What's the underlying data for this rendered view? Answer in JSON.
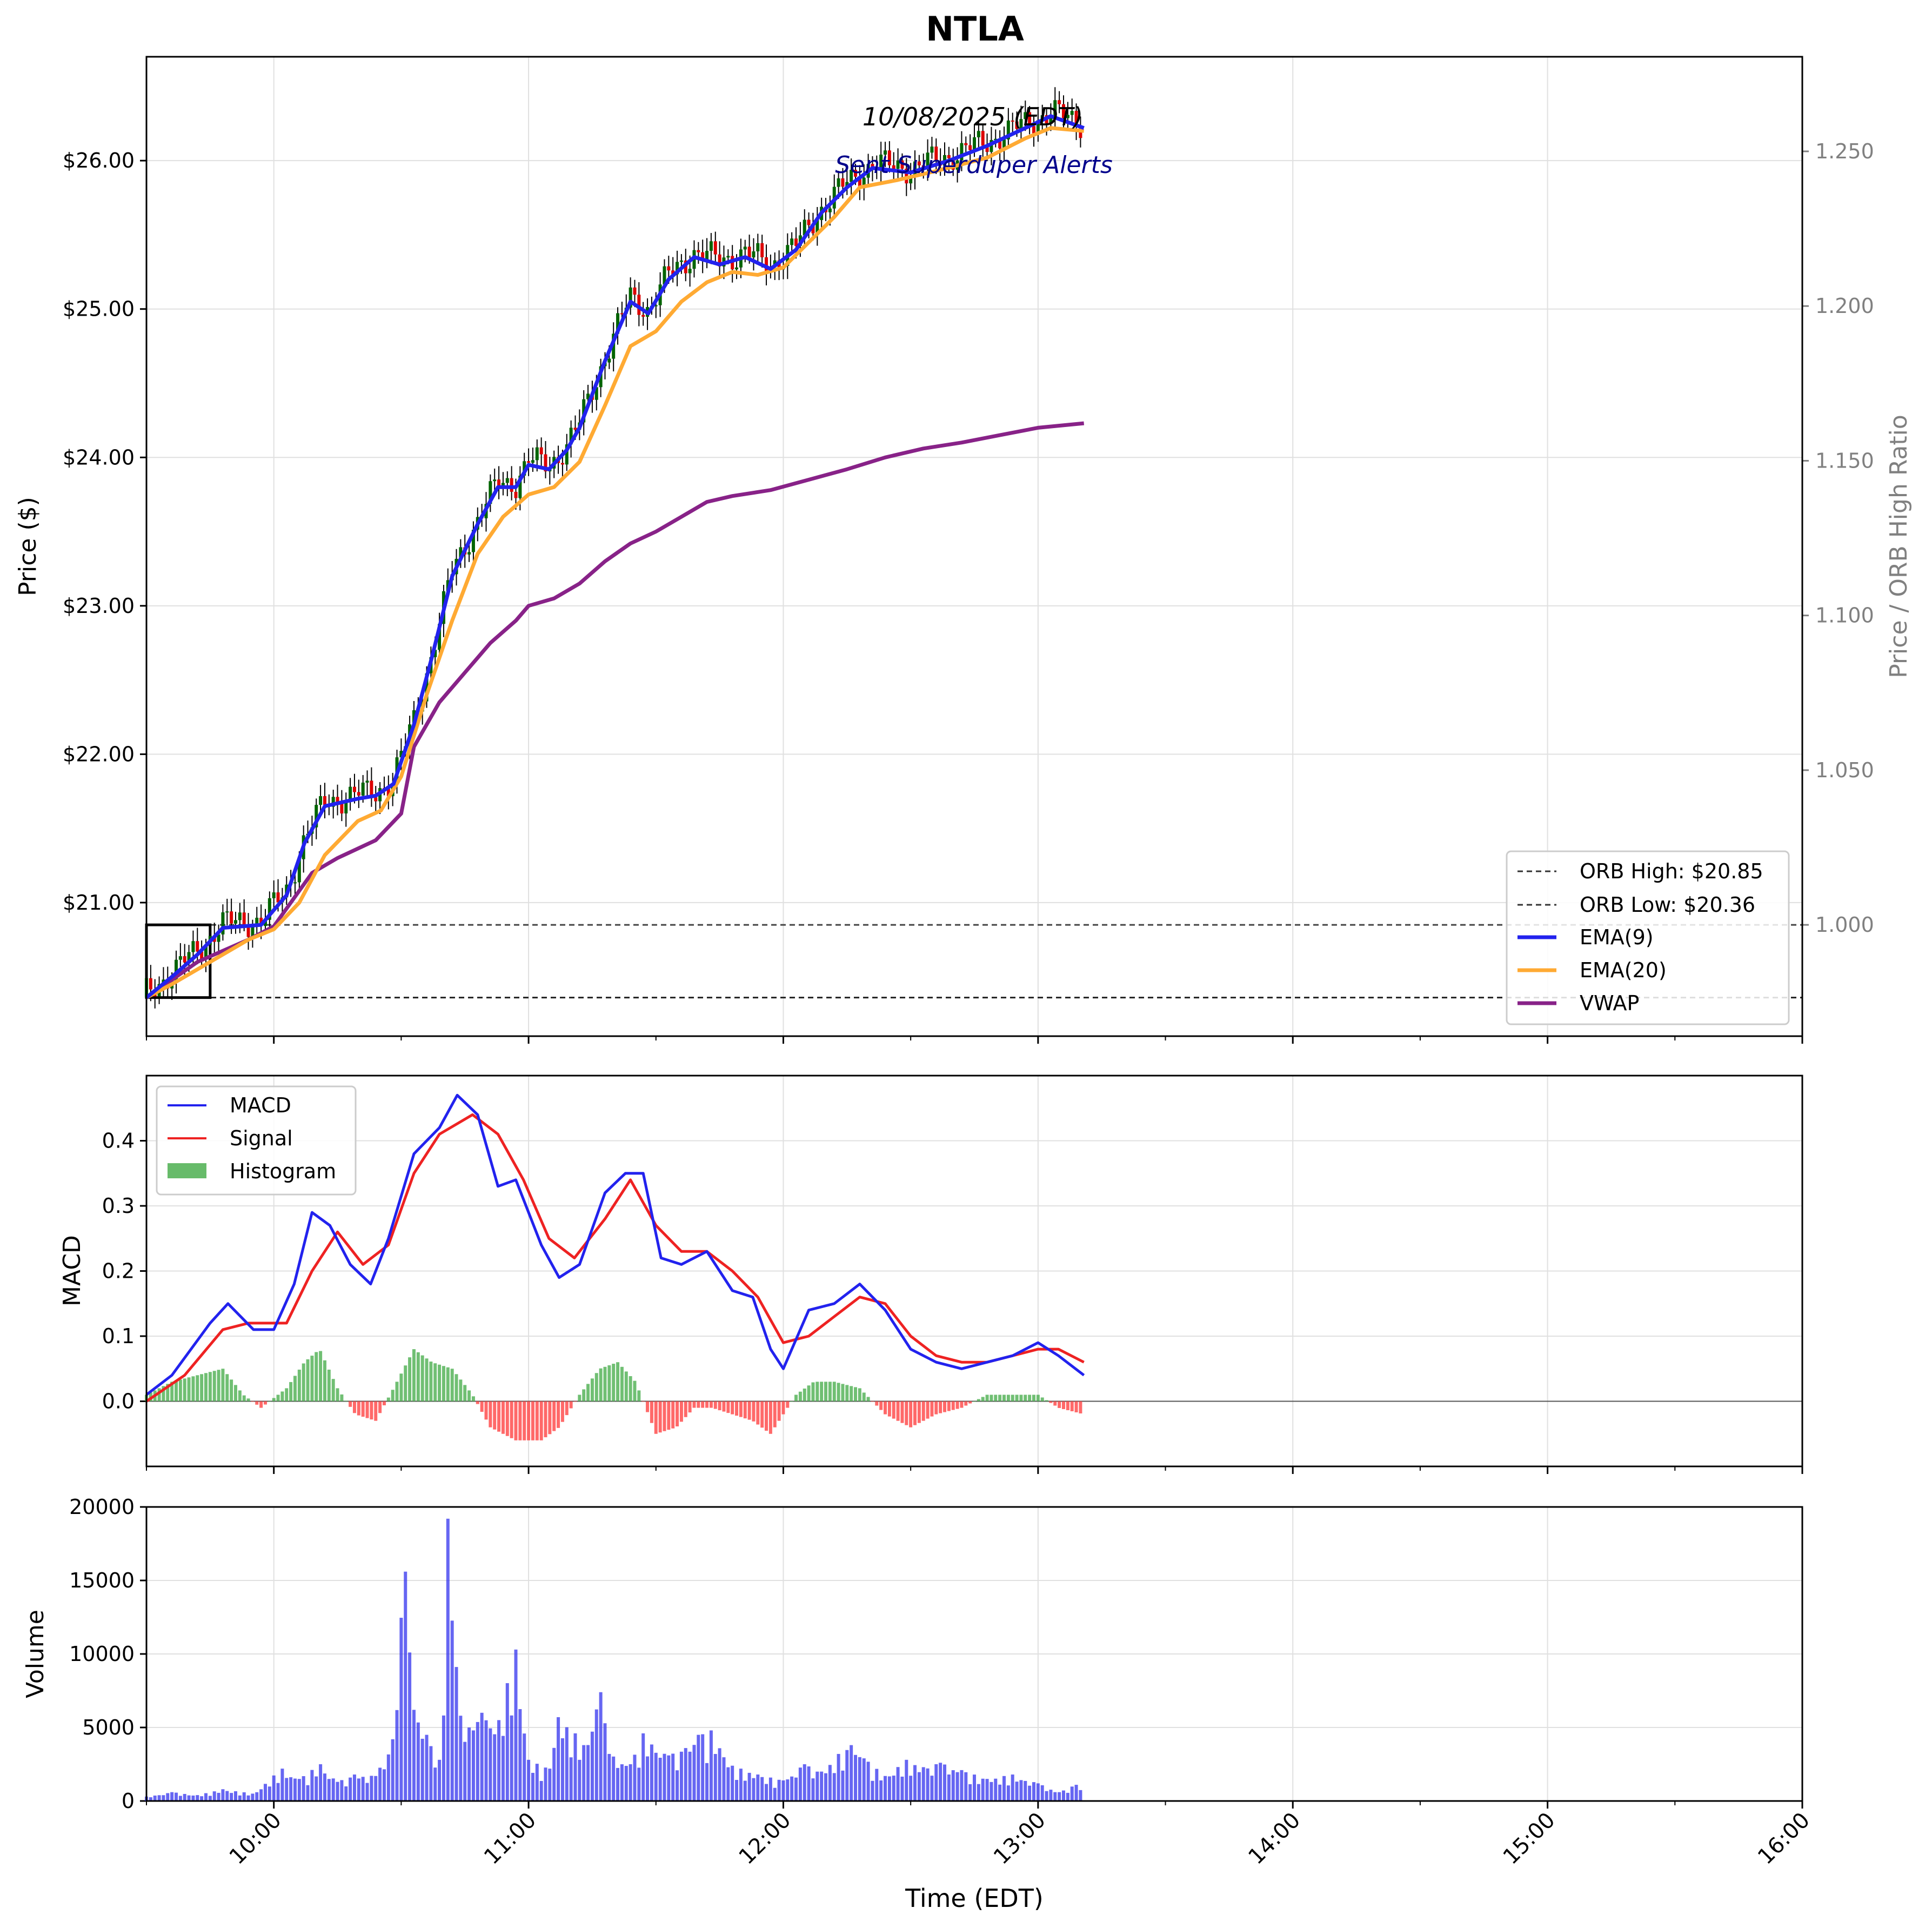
{
  "chart_data": {
    "title": "NTLA",
    "date_label": "10/08/2025 (EDT)",
    "sent_label": "Sent Superduper Alerts",
    "xlabel": "Time (EDT)",
    "x_ticks": [
      "10:00",
      "11:00",
      "12:00",
      "13:00",
      "14:00",
      "15:00",
      "16:00"
    ],
    "x_range": [
      "09:30",
      "16:00"
    ],
    "price": {
      "type": "candlestick",
      "ylabel": "Price ($)",
      "right_ylabel": "Price / ORB High Ratio",
      "ylim": [
        20.1,
        26.7
      ],
      "y_ticks": [
        "$21.00",
        "$22.00",
        "$23.00",
        "$24.00",
        "$25.00",
        "$26.00"
      ],
      "right_ticks": [
        "1.000",
        "1.050",
        "1.100",
        "1.150",
        "1.200",
        "1.250"
      ],
      "orb_high": 20.85,
      "orb_low": 20.36,
      "legend": [
        "ORB High: $20.85",
        "ORB Low: $20.36",
        "EMA(9)",
        "EMA(20)",
        "VWAP"
      ],
      "legend_position": "lower-right",
      "colors": {
        "ema9": "#2222ee",
        "ema20": "#ffaa33",
        "vwap": "#882288",
        "up": "#006400",
        "down": "#dd0000"
      },
      "ema9": [
        [
          9.5,
          20.36
        ],
        [
          9.6,
          20.5
        ],
        [
          9.7,
          20.65
        ],
        [
          9.8,
          20.83
        ],
        [
          9.95,
          20.85
        ],
        [
          10.05,
          21.05
        ],
        [
          10.12,
          21.4
        ],
        [
          10.2,
          21.65
        ],
        [
          10.33,
          21.7
        ],
        [
          10.4,
          21.72
        ],
        [
          10.47,
          21.8
        ],
        [
          10.55,
          22.2
        ],
        [
          10.62,
          22.65
        ],
        [
          10.7,
          23.2
        ],
        [
          10.8,
          23.55
        ],
        [
          10.88,
          23.8
        ],
        [
          10.95,
          23.8
        ],
        [
          11.0,
          23.95
        ],
        [
          11.08,
          23.92
        ],
        [
          11.15,
          24.05
        ],
        [
          11.2,
          24.2
        ],
        [
          11.3,
          24.65
        ],
        [
          11.4,
          25.05
        ],
        [
          11.47,
          24.97
        ],
        [
          11.55,
          25.2
        ],
        [
          11.65,
          25.35
        ],
        [
          11.75,
          25.3
        ],
        [
          11.85,
          25.35
        ],
        [
          11.95,
          25.27
        ],
        [
          12.05,
          25.4
        ],
        [
          12.15,
          25.65
        ],
        [
          12.25,
          25.82
        ],
        [
          12.35,
          25.95
        ],
        [
          12.5,
          25.92
        ],
        [
          12.65,
          26.0
        ],
        [
          12.8,
          26.1
        ],
        [
          12.95,
          26.22
        ],
        [
          13.05,
          26.3
        ],
        [
          13.18,
          26.22
        ]
      ],
      "ema20": [
        [
          9.5,
          20.36
        ],
        [
          9.6,
          20.45
        ],
        [
          9.75,
          20.6
        ],
        [
          9.9,
          20.75
        ],
        [
          10.0,
          20.82
        ],
        [
          10.1,
          21.0
        ],
        [
          10.2,
          21.32
        ],
        [
          10.33,
          21.55
        ],
        [
          10.42,
          21.62
        ],
        [
          10.5,
          21.85
        ],
        [
          10.6,
          22.4
        ],
        [
          10.7,
          22.9
        ],
        [
          10.8,
          23.35
        ],
        [
          10.9,
          23.6
        ],
        [
          11.0,
          23.75
        ],
        [
          11.1,
          23.8
        ],
        [
          11.2,
          23.97
        ],
        [
          11.3,
          24.35
        ],
        [
          11.4,
          24.75
        ],
        [
          11.5,
          24.85
        ],
        [
          11.6,
          25.05
        ],
        [
          11.7,
          25.18
        ],
        [
          11.8,
          25.25
        ],
        [
          11.9,
          25.23
        ],
        [
          12.0,
          25.28
        ],
        [
          12.1,
          25.45
        ],
        [
          12.2,
          25.62
        ],
        [
          12.3,
          25.82
        ],
        [
          12.45,
          25.87
        ],
        [
          12.6,
          25.93
        ],
        [
          12.8,
          26.02
        ],
        [
          12.95,
          26.15
        ],
        [
          13.05,
          26.22
        ],
        [
          13.18,
          26.2
        ]
      ],
      "vwap": [
        [
          9.5,
          20.36
        ],
        [
          9.7,
          20.6
        ],
        [
          9.9,
          20.75
        ],
        [
          10.0,
          20.84
        ],
        [
          10.15,
          21.2
        ],
        [
          10.25,
          21.3
        ],
        [
          10.4,
          21.42
        ],
        [
          10.5,
          21.6
        ],
        [
          10.55,
          22.05
        ],
        [
          10.65,
          22.35
        ],
        [
          10.75,
          22.55
        ],
        [
          10.85,
          22.75
        ],
        [
          10.95,
          22.9
        ],
        [
          11.0,
          23.0
        ],
        [
          11.1,
          23.05
        ],
        [
          11.2,
          23.15
        ],
        [
          11.3,
          23.3
        ],
        [
          11.4,
          23.42
        ],
        [
          11.5,
          23.5
        ],
        [
          11.6,
          23.6
        ],
        [
          11.7,
          23.7
        ],
        [
          11.8,
          23.74
        ],
        [
          11.95,
          23.78
        ],
        [
          12.1,
          23.85
        ],
        [
          12.25,
          23.92
        ],
        [
          12.4,
          24.0
        ],
        [
          12.55,
          24.06
        ],
        [
          12.7,
          24.1
        ],
        [
          12.85,
          24.15
        ],
        [
          13.0,
          24.2
        ],
        [
          13.18,
          24.23
        ]
      ]
    },
    "macd": {
      "ylabel": "MACD",
      "ylim": [
        -0.1,
        0.5
      ],
      "y_ticks": [
        "0.0",
        "0.1",
        "0.2",
        "0.3",
        "0.4"
      ],
      "legend": [
        "MACD",
        "Signal",
        "Histogram"
      ],
      "legend_position": "upper-left",
      "colors": {
        "macd": "#2222ee",
        "signal": "#ee2222",
        "hist_pos": "#4caf50",
        "hist_neg": "#ff4444"
      },
      "macd_line": [
        [
          9.5,
          0.01
        ],
        [
          9.6,
          0.04
        ],
        [
          9.75,
          0.12
        ],
        [
          9.82,
          0.15
        ],
        [
          9.92,
          0.11
        ],
        [
          10.0,
          0.11
        ],
        [
          10.08,
          0.18
        ],
        [
          10.15,
          0.29
        ],
        [
          10.22,
          0.27
        ],
        [
          10.3,
          0.21
        ],
        [
          10.38,
          0.18
        ],
        [
          10.45,
          0.25
        ],
        [
          10.55,
          0.38
        ],
        [
          10.65,
          0.42
        ],
        [
          10.72,
          0.47
        ],
        [
          10.8,
          0.44
        ],
        [
          10.88,
          0.33
        ],
        [
          10.95,
          0.34
        ],
        [
          11.05,
          0.24
        ],
        [
          11.12,
          0.19
        ],
        [
          11.2,
          0.21
        ],
        [
          11.3,
          0.32
        ],
        [
          11.38,
          0.35
        ],
        [
          11.45,
          0.35
        ],
        [
          11.52,
          0.22
        ],
        [
          11.6,
          0.21
        ],
        [
          11.7,
          0.23
        ],
        [
          11.8,
          0.17
        ],
        [
          11.88,
          0.16
        ],
        [
          11.95,
          0.08
        ],
        [
          12.0,
          0.05
        ],
        [
          12.1,
          0.14
        ],
        [
          12.2,
          0.15
        ],
        [
          12.3,
          0.18
        ],
        [
          12.4,
          0.14
        ],
        [
          12.5,
          0.08
        ],
        [
          12.6,
          0.06
        ],
        [
          12.7,
          0.05
        ],
        [
          12.8,
          0.06
        ],
        [
          12.9,
          0.07
        ],
        [
          13.0,
          0.09
        ],
        [
          13.08,
          0.07
        ],
        [
          13.18,
          0.04
        ]
      ],
      "signal_line": [
        [
          9.5,
          0.0
        ],
        [
          9.65,
          0.04
        ],
        [
          9.8,
          0.11
        ],
        [
          9.9,
          0.12
        ],
        [
          10.05,
          0.12
        ],
        [
          10.15,
          0.2
        ],
        [
          10.25,
          0.26
        ],
        [
          10.35,
          0.21
        ],
        [
          10.45,
          0.24
        ],
        [
          10.55,
          0.35
        ],
        [
          10.65,
          0.41
        ],
        [
          10.78,
          0.44
        ],
        [
          10.88,
          0.41
        ],
        [
          10.98,
          0.34
        ],
        [
          11.08,
          0.25
        ],
        [
          11.18,
          0.22
        ],
        [
          11.3,
          0.28
        ],
        [
          11.4,
          0.34
        ],
        [
          11.5,
          0.27
        ],
        [
          11.6,
          0.23
        ],
        [
          11.7,
          0.23
        ],
        [
          11.8,
          0.2
        ],
        [
          11.9,
          0.16
        ],
        [
          12.0,
          0.09
        ],
        [
          12.1,
          0.1
        ],
        [
          12.2,
          0.13
        ],
        [
          12.3,
          0.16
        ],
        [
          12.4,
          0.15
        ],
        [
          12.5,
          0.1
        ],
        [
          12.6,
          0.07
        ],
        [
          12.7,
          0.06
        ],
        [
          12.8,
          0.06
        ],
        [
          12.9,
          0.07
        ],
        [
          13.0,
          0.08
        ],
        [
          13.08,
          0.08
        ],
        [
          13.18,
          0.06
        ]
      ],
      "histogram": [
        [
          9.5,
          0.01
        ],
        [
          9.6,
          0.03
        ],
        [
          9.7,
          0.04
        ],
        [
          9.8,
          0.05
        ],
        [
          9.88,
          0.01
        ],
        [
          9.95,
          -0.01
        ],
        [
          10.05,
          0.02
        ],
        [
          10.12,
          0.06
        ],
        [
          10.18,
          0.08
        ],
        [
          10.25,
          0.02
        ],
        [
          10.32,
          -0.02
        ],
        [
          10.4,
          -0.03
        ],
        [
          10.47,
          0.02
        ],
        [
          10.55,
          0.08
        ],
        [
          10.62,
          0.06
        ],
        [
          10.7,
          0.05
        ],
        [
          10.78,
          0.01
        ],
        [
          10.85,
          -0.04
        ],
        [
          10.95,
          -0.06
        ],
        [
          11.05,
          -0.06
        ],
        [
          11.12,
          -0.04
        ],
        [
          11.2,
          0.01
        ],
        [
          11.28,
          0.05
        ],
        [
          11.35,
          0.06
        ],
        [
          11.42,
          0.03
        ],
        [
          11.5,
          -0.05
        ],
        [
          11.58,
          -0.04
        ],
        [
          11.65,
          -0.01
        ],
        [
          11.72,
          -0.01
        ],
        [
          11.8,
          -0.02
        ],
        [
          11.88,
          -0.03
        ],
        [
          11.95,
          -0.05
        ],
        [
          12.05,
          0.01
        ],
        [
          12.12,
          0.03
        ],
        [
          12.2,
          0.03
        ],
        [
          12.3,
          0.02
        ],
        [
          12.4,
          -0.02
        ],
        [
          12.5,
          -0.04
        ],
        [
          12.6,
          -0.02
        ],
        [
          12.7,
          -0.01
        ],
        [
          12.8,
          0.01
        ],
        [
          12.9,
          0.01
        ],
        [
          13.0,
          0.01
        ],
        [
          13.08,
          -0.01
        ],
        [
          13.18,
          -0.02
        ]
      ]
    },
    "volume": {
      "ylabel": "Volume",
      "ylim": [
        0,
        20000
      ],
      "y_ticks": [
        "0",
        "5000",
        "10000",
        "15000",
        "20000"
      ],
      "color": "#3333ee",
      "bars": [
        [
          9.5,
          300
        ],
        [
          9.6,
          600
        ],
        [
          9.7,
          400
        ],
        [
          9.8,
          800
        ],
        [
          9.92,
          500
        ],
        [
          10.03,
          2200
        ],
        [
          10.1,
          1500
        ],
        [
          10.18,
          2500
        ],
        [
          10.25,
          1300
        ],
        [
          10.32,
          1800
        ],
        [
          10.4,
          1700
        ],
        [
          10.47,
          4200
        ],
        [
          10.51,
          15600
        ],
        [
          10.55,
          6200
        ],
        [
          10.6,
          4500
        ],
        [
          10.65,
          2800
        ],
        [
          10.69,
          19200
        ],
        [
          10.73,
          5800
        ],
        [
          10.78,
          4800
        ],
        [
          10.82,
          6000
        ],
        [
          10.88,
          5500
        ],
        [
          10.95,
          10300
        ],
        [
          11.0,
          2800
        ],
        [
          11.08,
          2200
        ],
        [
          11.12,
          5700
        ],
        [
          11.18,
          4600
        ],
        [
          11.22,
          3800
        ],
        [
          11.28,
          7400
        ],
        [
          11.32,
          3200
        ],
        [
          11.4,
          2500
        ],
        [
          11.45,
          4600
        ],
        [
          11.55,
          3100
        ],
        [
          11.62,
          3600
        ],
        [
          11.67,
          4500
        ],
        [
          11.72,
          4800
        ],
        [
          11.8,
          2400
        ],
        [
          11.9,
          1800
        ],
        [
          12.0,
          1400
        ],
        [
          12.08,
          2500
        ],
        [
          12.15,
          2000
        ],
        [
          12.22,
          3200
        ],
        [
          12.27,
          3800
        ],
        [
          12.32,
          2900
        ],
        [
          12.4,
          1700
        ],
        [
          12.48,
          2800
        ],
        [
          12.55,
          2300
        ],
        [
          12.62,
          2600
        ],
        [
          12.7,
          2100
        ],
        [
          12.8,
          1500
        ],
        [
          12.9,
          1800
        ],
        [
          13.0,
          1200
        ],
        [
          13.08,
          600
        ],
        [
          13.15,
          1100
        ],
        [
          13.18,
          500
        ]
      ]
    }
  }
}
